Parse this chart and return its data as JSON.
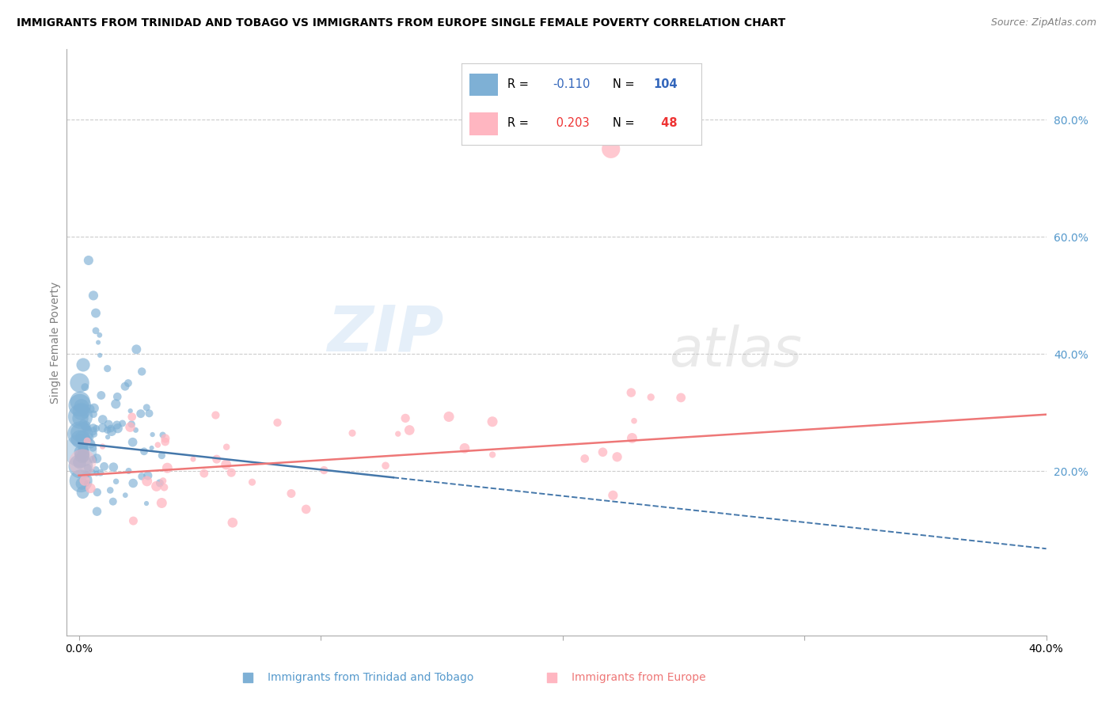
{
  "title": "IMMIGRANTS FROM TRINIDAD AND TOBAGO VS IMMIGRANTS FROM EUROPE SINGLE FEMALE POVERTY CORRELATION CHART",
  "source": "Source: ZipAtlas.com",
  "ylabel": "Single Female Poverty",
  "right_yticks": [
    "80.0%",
    "60.0%",
    "40.0%",
    "20.0%"
  ],
  "right_ytick_vals": [
    0.8,
    0.6,
    0.4,
    0.2
  ],
  "legend_blue_R": "R = -0.110",
  "legend_blue_N": "N = 104",
  "legend_pink_R": "R =  0.203",
  "legend_pink_N": "N =  48",
  "legend_blue_label": "Immigrants from Trinidad and Tobago",
  "legend_pink_label": "Immigrants from Europe",
  "watermark_zip": "ZIP",
  "watermark_atlas": "atlas",
  "blue_color": "#7EB0D5",
  "pink_color": "#FFB6C1",
  "blue_line_color": "#4477AA",
  "pink_line_color": "#EE7777",
  "grid_color": "#CCCCCC",
  "xlim": [
    -0.005,
    0.4
  ],
  "ylim": [
    -0.08,
    0.92
  ]
}
